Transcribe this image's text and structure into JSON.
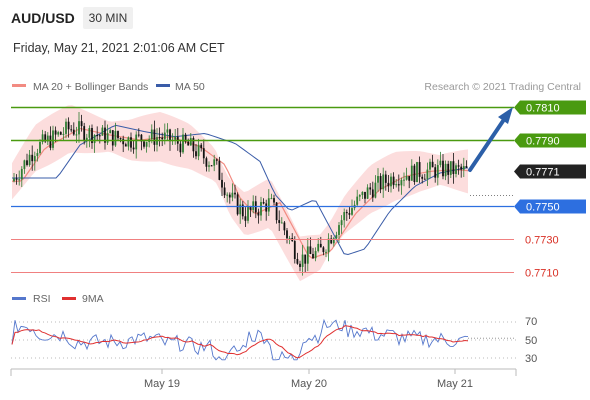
{
  "header": {
    "symbol": "AUD/USD",
    "timeframe": "30 MIN",
    "datetime": "Friday, May 21, 2021 2:01:06 AM CET"
  },
  "legend": {
    "ma20_label": "MA 20 + Bollinger Bands",
    "ma50_label": "MA 50",
    "ma20_color": "#f28b82",
    "ma50_color": "#3a5ca8",
    "credit": "Research © 2021 Trading Central"
  },
  "levels": [
    {
      "price": 0.781,
      "label": "0.7810",
      "kind": "green-tag"
    },
    {
      "price": 0.779,
      "label": "0.7790",
      "kind": "green-tag"
    },
    {
      "price": 0.7771,
      "label": "0.7771",
      "kind": "current-tag"
    },
    {
      "price": 0.775,
      "label": "0.7750",
      "kind": "blue-tag"
    },
    {
      "price": 0.773,
      "label": "0.7730",
      "kind": "red-text"
    },
    {
      "price": 0.771,
      "label": "0.7710",
      "kind": "red-text"
    }
  ],
  "rsi_panel": {
    "rsi_label": "RSI",
    "ma9_label": "9MA",
    "rsi_color": "#5577cc",
    "ma9_color": "#e03030",
    "ticks": [
      "70",
      "50",
      "30"
    ]
  },
  "x_axis": {
    "labels": [
      "May 19",
      "May 20",
      "May 21"
    ]
  },
  "colors": {
    "green": "#4a9a10",
    "blue": "#2d6fe0",
    "red_line": "#f08080",
    "arrow": "#2c5fa8",
    "candle_up": "#2e7d32",
    "candle_down": "#111111",
    "band_fill": "#fcd7d7"
  },
  "chart_data": {
    "type": "candlestick",
    "title": "AUD/USD",
    "ylim": [
      0.77,
      0.782
    ],
    "price_levels": [
      0.781,
      0.779,
      0.7771,
      0.775,
      0.773,
      0.771
    ],
    "close_start": 0.7765,
    "close_last": 0.7771,
    "rsi_levels": [
      70,
      50,
      30
    ]
  }
}
